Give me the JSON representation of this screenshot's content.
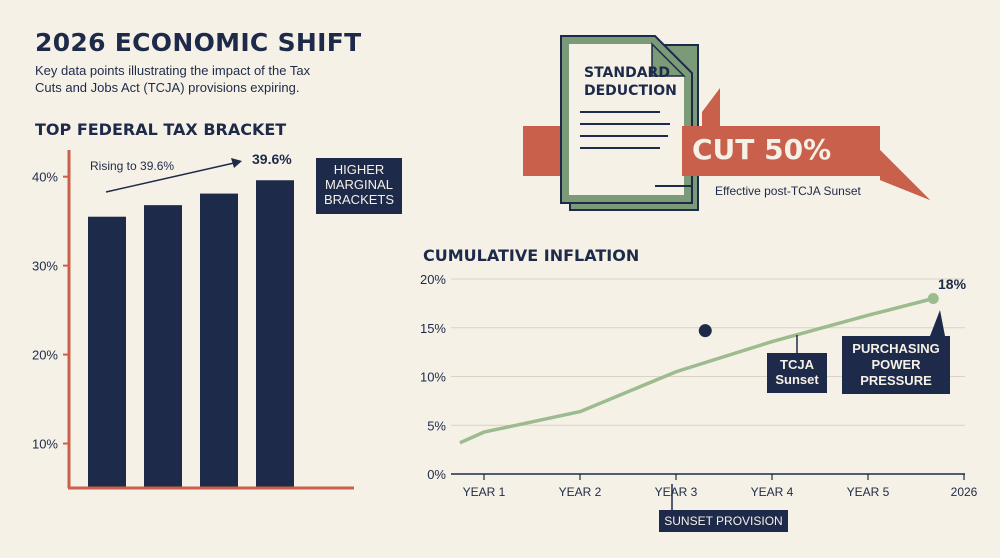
{
  "header": {
    "title": "2026 ECONOMIC SHIFT",
    "subtitle": "Key data points illustrating the impact of the Tax Cuts and Jobs Act (TCJA) provisions expiring."
  },
  "deduction_panel": {
    "document_title_line1": "STANDARD",
    "document_title_line2": "DEDUCTION",
    "cut_label": "CUT 50%",
    "cut_subtitle": "Effective post-TCJA Sunset",
    "colors": {
      "arrow": "#c9604b",
      "doc_border": "#7b9b78",
      "doc_fill": "#f6f1e6"
    }
  },
  "bracket_chart": {
    "title": "TOP FEDERAL TAX BRACKET",
    "arrow_label": "Rising to 39.6%",
    "top_value_label": "39.6%",
    "callout_line1": "HIGHER",
    "callout_line2": "MARGINAL",
    "callout_line3": "BRACKETS"
  },
  "inflation_chart": {
    "title": "CUMULATIVE INFLATION",
    "end_value_label": "18%",
    "tcja_line1": "TCJA",
    "tcja_line2": "Sunset",
    "pressure_line1": "PURCHASING",
    "pressure_line2": "POWER",
    "pressure_line3": "PRESSURE",
    "sunset_provision": "SUNSET PROVISION"
  },
  "chart_data": [
    {
      "type": "bar",
      "title": "TOP FEDERAL TAX BRACKET",
      "categories": [
        "",
        "",
        "",
        ""
      ],
      "values": [
        35.5,
        36.8,
        38.1,
        39.6
      ],
      "ylim": [
        5,
        43
      ],
      "yticks": [
        10,
        20,
        30,
        40
      ],
      "ytick_labels": [
        "10%",
        "20%",
        "30%",
        "40%"
      ],
      "grid": false,
      "colors": {
        "bar": "#1d2a4a",
        "axis": "#c9604b"
      }
    },
    {
      "type": "line",
      "title": "CUMULATIVE INFLATION",
      "categories": [
        "YEAR 1",
        "YEAR 2",
        "YEAR 3",
        "YEAR 4",
        "YEAR 5",
        "2026"
      ],
      "x": [
        0.75,
        1,
        2,
        3,
        4,
        5,
        5.67
      ],
      "values": [
        3.2,
        4.3,
        6.4,
        10.5,
        13.6,
        16.3,
        18.0
      ],
      "highlight_points": [
        {
          "x": 3.3,
          "y": 14.7,
          "label": "TCJA Sunset"
        },
        {
          "x": 5.67,
          "y": 18.0,
          "label": "18%"
        }
      ],
      "ylim": [
        0,
        20
      ],
      "yticks": [
        0,
        5,
        10,
        15,
        20
      ],
      "ytick_labels": [
        "0%",
        "5%",
        "10%",
        "15%",
        "20%"
      ],
      "grid": true,
      "colors": {
        "line": "#9cbb8f",
        "grid": "#d9d3c6",
        "marker": "#1d2a4a"
      }
    }
  ]
}
